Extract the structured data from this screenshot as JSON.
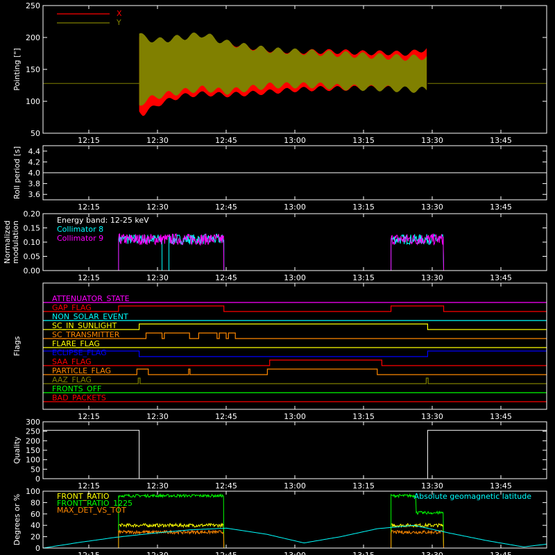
{
  "x_axis": {
    "ticks": [
      "12:15",
      "12:30",
      "12:45",
      "13:00",
      "13:15",
      "13:30",
      "13:45"
    ],
    "tick_minutes": [
      15,
      30,
      45,
      60,
      75,
      90,
      105
    ],
    "range_minutes": [
      5,
      115
    ]
  },
  "colors": {
    "axis": "#ffffff",
    "red": "#ff0000",
    "olive": "#808000",
    "cyan": "#00ffff",
    "magenta": "#ff00ff",
    "green": "#00ff00",
    "yellow": "#ffff00",
    "orange": "#ff8800",
    "blue": "#0000ff"
  },
  "chart_data": [
    {
      "id": "pointing",
      "type": "area",
      "ylabel": "Pointing [\"]",
      "ylim": [
        50,
        250
      ],
      "yticks": [
        50,
        100,
        150,
        200,
        250
      ],
      "legend": [
        "X",
        "Y"
      ],
      "legend_placement": "top-left",
      "baseline_y": 128,
      "active_range_minutes": [
        26,
        89
      ],
      "series": [
        {
          "name": "X",
          "color": "#ff0000",
          "x_minutes": [
            26,
            27,
            30,
            35,
            40,
            45,
            50,
            55,
            60,
            65,
            70,
            75,
            80,
            85,
            89
          ],
          "upper": [
            200,
            190,
            190,
            195,
            198,
            192,
            185,
            180,
            178,
            178,
            178,
            176,
            176,
            175,
            183
          ],
          "lower": [
            85,
            80,
            95,
            108,
            112,
            110,
            112,
            115,
            118,
            120,
            120,
            121,
            120,
            121,
            120
          ]
        },
        {
          "name": "Y",
          "color": "#808000",
          "x_minutes": [
            26,
            27,
            30,
            35,
            40,
            45,
            50,
            55,
            60,
            65,
            70,
            75,
            80,
            85,
            89
          ],
          "upper": [
            205,
            200,
            195,
            200,
            205,
            192,
            185,
            180,
            178,
            176,
            174,
            172,
            170,
            168,
            170
          ],
          "lower": [
            95,
            100,
            108,
            115,
            120,
            115,
            120,
            125,
            125,
            125,
            122,
            121,
            120,
            118,
            118
          ]
        }
      ]
    },
    {
      "id": "roll",
      "type": "line",
      "ylabel": "Roll period [s]",
      "ylim": [
        3.5,
        4.5
      ],
      "yticks": [
        3.6,
        3.8,
        4.0,
        4.2,
        4.4
      ],
      "ytick_labels": [
        "3.6",
        "3.8",
        "4.0",
        "4.2",
        "4.4"
      ],
      "series": [
        {
          "color": "#ffffff",
          "x_minutes": [
            5,
            115
          ],
          "y": [
            4.0,
            4.0
          ]
        }
      ]
    },
    {
      "id": "modulation",
      "type": "line",
      "ylabel": "Normalized\nmodulation",
      "ylim": [
        0,
        0.2
      ],
      "yticks": [
        0,
        0.05,
        0.1,
        0.15,
        0.2
      ],
      "ytick_labels": [
        "0.00",
        "0.05",
        "0.10",
        "0.15",
        "0.20"
      ],
      "annotation": "Energy band: 12-25 keV",
      "legend": [
        "Collimator 8",
        "Collimator 9"
      ],
      "legend_placement": "top-left",
      "series": [
        {
          "name": "Collimator 8",
          "color": "#00ffff",
          "mean": 0.11,
          "noise": 0.018,
          "segments": [
            [
              21.5,
              31
            ],
            [
              32.5,
              44.5
            ],
            [
              81,
              92.5
            ]
          ]
        },
        {
          "name": "Collimator 9",
          "color": "#ff00ff",
          "mean": 0.11,
          "noise": 0.02,
          "segments": [
            [
              21.5,
              44.5
            ],
            [
              81,
              92.5
            ]
          ]
        }
      ]
    },
    {
      "id": "flags",
      "type": "line",
      "ylabel": "Flags",
      "rows": [
        {
          "name": "ATTENUATOR_STATE",
          "color": "#ff00ff",
          "steps": []
        },
        {
          "name": "GAP_FLAG",
          "color": "#ff0000",
          "steps": [
            [
              5,
              0
            ],
            [
              21.5,
              1
            ],
            [
              44.5,
              0
            ],
            [
              81,
              1
            ],
            [
              92.5,
              0
            ]
          ]
        },
        {
          "name": "NON_SOLAR_EVENT",
          "color": "#00ffff",
          "steps": []
        },
        {
          "name": "SC_IN_SUNLIGHT",
          "color": "#ffff00",
          "steps": [
            [
              5,
              0
            ],
            [
              26,
              1
            ],
            [
              89,
              0
            ]
          ]
        },
        {
          "name": "SC_TRANSMITTER",
          "color": "#ff8800",
          "steps": [
            [
              5,
              0
            ],
            [
              27.5,
              1
            ],
            [
              31,
              0
            ],
            [
              31.5,
              1
            ],
            [
              37,
              0
            ],
            [
              39,
              1
            ],
            [
              43,
              0
            ],
            [
              43.5,
              1
            ],
            [
              45,
              0
            ],
            [
              45.5,
              1
            ],
            [
              47,
              0
            ]
          ]
        },
        {
          "name": "FLARE_FLAG",
          "color": "#ffff00",
          "steps": []
        },
        {
          "name": "ECLIPSE_FLAG",
          "color": "#0000ff",
          "steps": [
            [
              5,
              1
            ],
            [
              26,
              0
            ],
            [
              89,
              1
            ]
          ]
        },
        {
          "name": "SAA_FLAG",
          "color": "#ff0000",
          "steps": [
            [
              5,
              0
            ],
            [
              54.5,
              1
            ],
            [
              79,
              0
            ]
          ]
        },
        {
          "name": "PARTICLE_FLAG",
          "color": "#ff8800",
          "steps": [
            [
              5,
              0
            ],
            [
              25.5,
              1
            ],
            [
              28,
              0
            ],
            [
              36.8,
              1
            ],
            [
              37.1,
              0
            ],
            [
              54,
              1
            ],
            [
              78,
              0
            ]
          ]
        },
        {
          "name": "AAZ_FLAG",
          "color": "#808000",
          "steps": [
            [
              5,
              0
            ],
            [
              25.8,
              1
            ],
            [
              26.2,
              0
            ],
            [
              88.7,
              1
            ],
            [
              89.1,
              0
            ]
          ]
        },
        {
          "name": "FRONTS_OFF",
          "color": "#00ff00",
          "steps": []
        },
        {
          "name": "BAD_PACKETS",
          "color": "#ff0000",
          "steps": []
        }
      ]
    },
    {
      "id": "quality",
      "type": "line",
      "ylabel": "Quality",
      "ylim": [
        0,
        300
      ],
      "yticks": [
        0,
        50,
        100,
        150,
        200,
        250,
        300
      ],
      "series": [
        {
          "color": "#ffffff",
          "steps": [
            [
              5,
              255
            ],
            [
              26,
              0
            ],
            [
              89,
              255
            ]
          ]
        }
      ]
    },
    {
      "id": "ratios",
      "type": "line",
      "ylabel": "Degrees or %",
      "ylim": [
        0,
        100
      ],
      "yticks": [
        0,
        20,
        40,
        60,
        80,
        100
      ],
      "legend": [
        "FRONT_RATIO",
        "FRONT_RATIO_1225",
        "MAX_DET_VS_TOT"
      ],
      "annotation": "Absolute geomagnetic latitude",
      "series": [
        {
          "name": "FRONT_RATIO",
          "color": "#ffff00",
          "mean": 40,
          "noise": 3,
          "segments": [
            [
              21.5,
              44.5
            ],
            [
              81,
              92.5
            ]
          ]
        },
        {
          "name": "FRONT_RATIO_1225",
          "color": "#00ff00",
          "mean": 92,
          "noise": 2.5,
          "segments": [
            [
              21.5,
              44.5
            ],
            [
              81,
              92.5
            ]
          ],
          "late_drop": {
            "from": 86.5,
            "value": 62
          }
        },
        {
          "name": "MAX_DET_VS_TOT",
          "color": "#ff8800",
          "mean": 28,
          "noise": 3,
          "segments": [
            [
              21.5,
              44.5
            ],
            [
              81,
              92.5
            ]
          ]
        },
        {
          "name": "Absolute geomagnetic latitude",
          "color": "#00ffff",
          "x_minutes": [
            5,
            13,
            21,
            29,
            37,
            45,
            54,
            62,
            70,
            78,
            86,
            94,
            102,
            110,
            115
          ],
          "y": [
            0,
            10,
            19,
            26,
            32,
            35,
            24,
            9,
            20,
            34,
            40,
            26,
            13,
            2,
            7
          ]
        }
      ]
    }
  ]
}
